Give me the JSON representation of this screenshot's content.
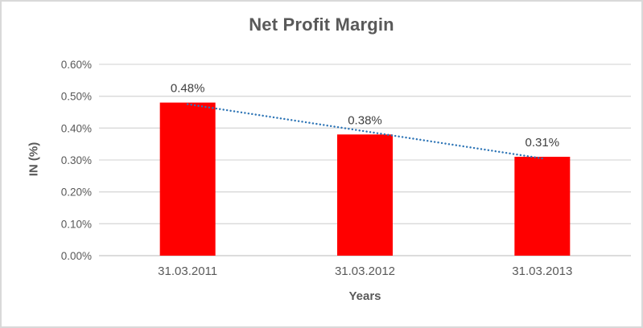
{
  "chart_data": {
    "type": "bar",
    "title": "Net Profit Margin",
    "categories": [
      "31.03.2011",
      "31.03.2012",
      "31.03.2013"
    ],
    "values": [
      0.48,
      0.38,
      0.31
    ],
    "value_labels": [
      "0.48%",
      "0.38%",
      "0.31%"
    ],
    "xlabel": "Years",
    "ylabel": "IN (%)",
    "ylim": [
      0,
      0.6
    ],
    "ytick_step": 0.1,
    "ytick_labels": [
      "0.00%",
      "0.10%",
      "0.20%",
      "0.30%",
      "0.40%",
      "0.50%",
      "0.60%"
    ],
    "grid": true,
    "legend": "none",
    "bar_color": "#ff0000",
    "trendline": {
      "type": "linear",
      "style": "dotted",
      "color": "#2e75b6",
      "start_value": 0.475,
      "end_value": 0.305
    }
  }
}
